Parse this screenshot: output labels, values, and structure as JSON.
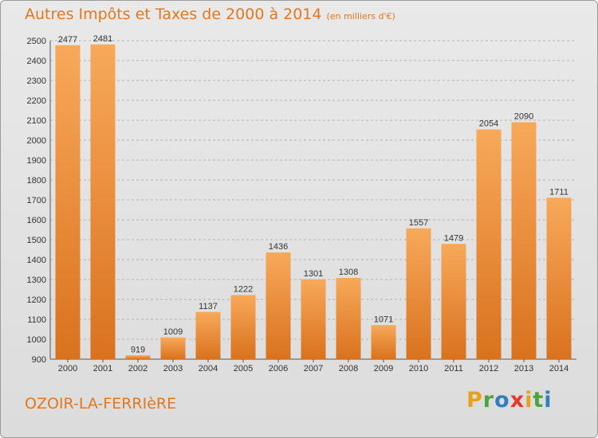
{
  "title": "Autres Impôts et Taxes de 2000 à 2014",
  "unit": "(en milliers d'€)",
  "commune": "OZOIR-LA-FERRIèRE",
  "logo": {
    "letters": [
      "P",
      "r",
      "o",
      "x",
      "i",
      "t",
      "i"
    ],
    "colors": [
      "#e8a21a",
      "#4da33d",
      "#2f7fc1",
      "#e23a2f",
      "#e8a21a",
      "#4da33d",
      "#2f7fc1"
    ]
  },
  "colors": {
    "bar_top": "#f7a95a",
    "bar_bottom": "#d9721e",
    "text_accent": "#e2771f"
  },
  "chart_data": {
    "type": "bar",
    "categories": [
      "2000",
      "2001",
      "2002",
      "2003",
      "2004",
      "2005",
      "2006",
      "2007",
      "2008",
      "2009",
      "2010",
      "2011",
      "2012",
      "2013",
      "2014"
    ],
    "values": [
      2477,
      2481,
      919,
      1009,
      1137,
      1222,
      1436,
      1301,
      1308,
      1071,
      1557,
      1479,
      2054,
      2090,
      1711
    ],
    "title": "Autres Impôts et Taxes de 2000 à 2014",
    "xlabel": "",
    "ylabel": "",
    "ylim": [
      900,
      2500
    ],
    "yticks": [
      900,
      1000,
      1100,
      1200,
      1300,
      1400,
      1500,
      1600,
      1700,
      1800,
      1900,
      2000,
      2100,
      2200,
      2300,
      2400,
      2500
    ],
    "grid": true,
    "legend": "none"
  }
}
